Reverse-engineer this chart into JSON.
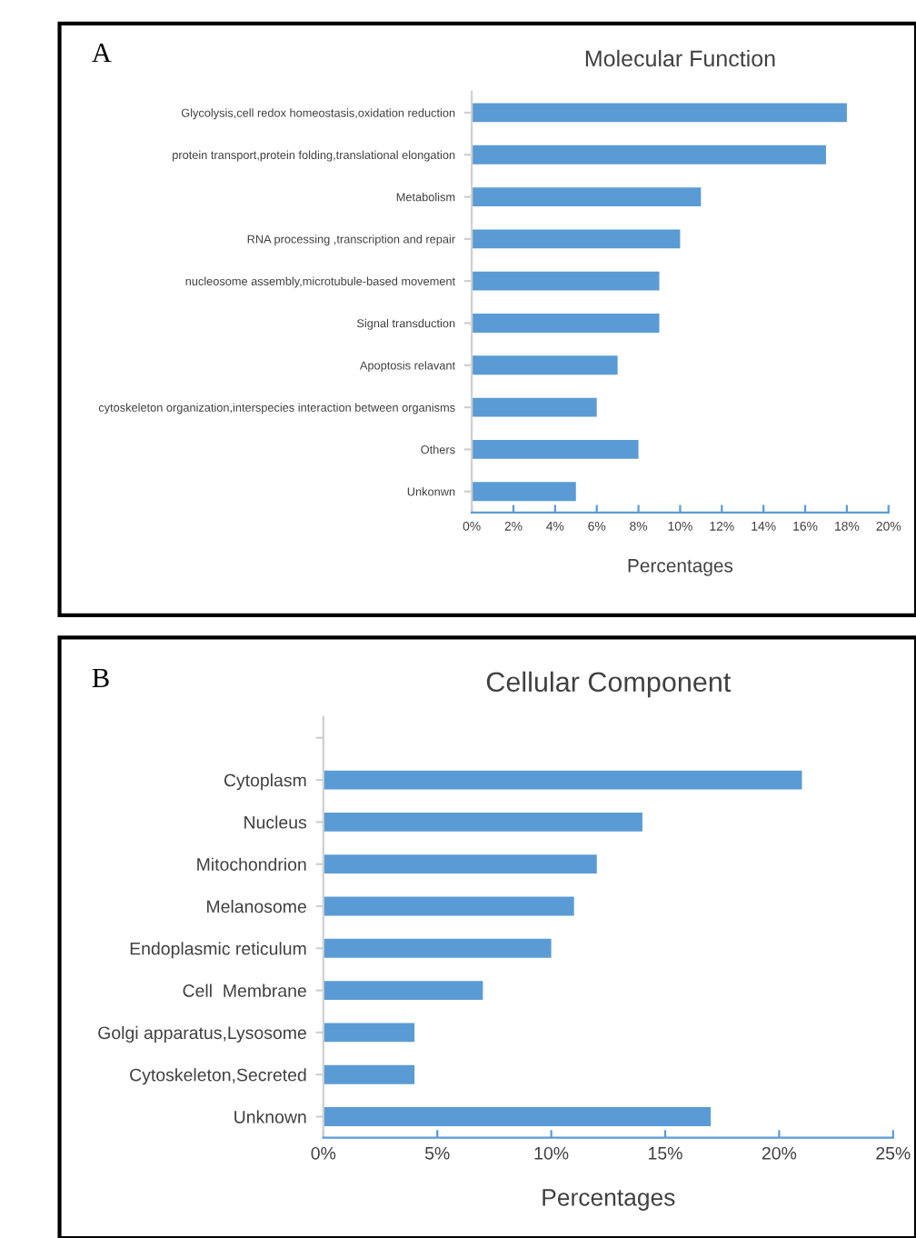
{
  "chart_data": [
    {
      "type": "bar",
      "orientation": "horizontal",
      "title": "Molecular Function",
      "xlabel": "Percentages",
      "annotations": [
        "A"
      ],
      "categories": [
        "Glycolysis,cell redox homeostasis,oxidation reduction",
        "protein transport,protein folding,translational elongation",
        "Metabolism",
        "RNA processing ,transcription and repair",
        "nucleosome assembly,microtubule-based movement",
        "Signal transduction",
        "Apoptosis relavant",
        "cytoskeleton organization,interspecies interaction between organisms",
        "Others",
        "Unkonwn"
      ],
      "values": [
        18,
        17,
        11,
        10,
        9,
        9,
        7,
        6,
        8,
        5
      ],
      "color": "#5b9bd5",
      "xlim": [
        0,
        20
      ],
      "xticks": [
        {
          "value": 0,
          "label": "0%"
        },
        {
          "value": 2,
          "label": "2%"
        },
        {
          "value": 4,
          "label": "4%"
        },
        {
          "value": 6,
          "label": "6%"
        },
        {
          "value": 8,
          "label": "8%"
        },
        {
          "value": 10,
          "label": "10%"
        },
        {
          "value": 12,
          "label": "12%"
        },
        {
          "value": 14,
          "label": "14%"
        },
        {
          "value": 16,
          "label": "16%"
        },
        {
          "value": 18,
          "label": "18%"
        },
        {
          "value": 20,
          "label": "20%"
        }
      ],
      "grid": false,
      "legend": false
    },
    {
      "type": "bar",
      "orientation": "horizontal",
      "title": "Cellular Component",
      "xlabel": "Percentages",
      "annotations": [
        "B"
      ],
      "categories": [
        null,
        "Cytoplasm",
        "Nucleus",
        "Mitochondrion",
        "Melanosome",
        "Endoplasmic reticulum",
        "Cell  Membrane",
        "Golgi apparatus,Lysosome",
        "Cytoskeleton,Secreted",
        "Unknown"
      ],
      "values": [
        null,
        21,
        14,
        12,
        11,
        10,
        7,
        4,
        4,
        17
      ],
      "color": "#5b9bd5",
      "xlim": [
        0,
        25
      ],
      "xticks": [
        {
          "value": 0,
          "label": "0%"
        },
        {
          "value": 5,
          "label": "5%"
        },
        {
          "value": 10,
          "label": "10%"
        },
        {
          "value": 15,
          "label": "15%"
        },
        {
          "value": 20,
          "label": "20%"
        },
        {
          "value": 25,
          "label": "25%"
        }
      ],
      "grid": false,
      "legend": false
    }
  ]
}
